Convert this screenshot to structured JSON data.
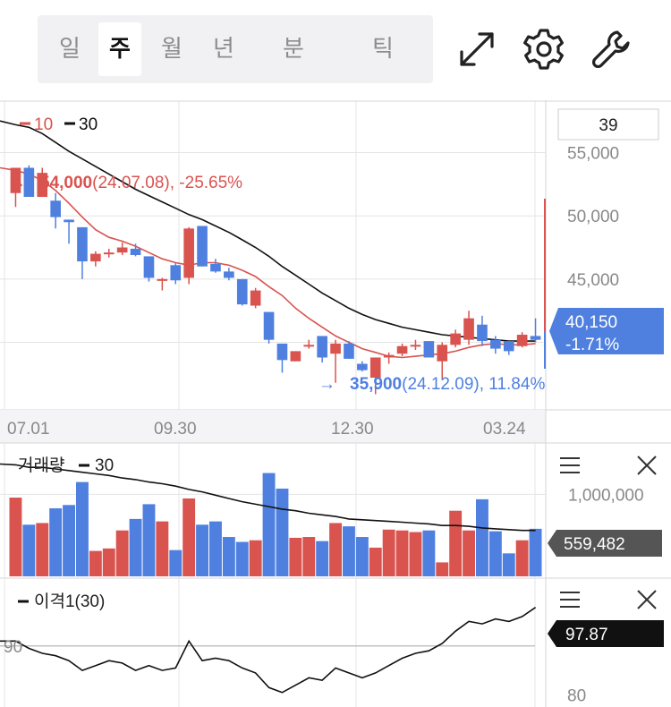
{
  "toolbar": {
    "periods": [
      "일",
      "주",
      "월",
      "년",
      "분",
      "틱"
    ],
    "active_period": "주",
    "icons": [
      "expand-icon",
      "gear-icon",
      "wrench-icon"
    ]
  },
  "colors": {
    "up": "#d9534f",
    "down": "#4f80e0",
    "ma10": "#d9534f",
    "ma30": "#111111",
    "grid": "#e4e4e4",
    "axis_text": "#888888"
  },
  "chart_data": [
    {
      "type": "candlestick",
      "legend": [
        {
          "name": "10",
          "color": "#d9534f"
        },
        {
          "name": "30",
          "color": "#111111"
        }
      ],
      "period_input": "39",
      "x_labels": [
        "07.01",
        "09.30",
        "12.30",
        "03.24"
      ],
      "y_ticks": [
        55000,
        50000,
        45000
      ],
      "y_tick_labels": [
        "55,000",
        "50,000",
        "45,000"
      ],
      "ylim": [
        34800,
        59000
      ],
      "last_price": "40,150",
      "last_change": "-1.71%",
      "high_marker": {
        "arrow": "→",
        "price": "54,000",
        "date": "(24.07.08)",
        "pct": ", -25.65%"
      },
      "low_marker": {
        "arrow": "→",
        "price": "35,900",
        "date": "(24.12.09)",
        "pct": ", 11.84%"
      },
      "candles": [
        {
          "o": 51800,
          "h": 53800,
          "l": 50700,
          "c": 53800
        },
        {
          "o": 53800,
          "h": 54000,
          "l": 51500,
          "c": 51500
        },
        {
          "o": 51500,
          "h": 53800,
          "l": 51500,
          "c": 53400
        },
        {
          "o": 51200,
          "h": 51800,
          "l": 49000,
          "c": 49900
        },
        {
          "o": 49700,
          "h": 49700,
          "l": 47800,
          "c": 49500
        },
        {
          "o": 49100,
          "h": 49100,
          "l": 45000,
          "c": 46400
        },
        {
          "o": 46400,
          "h": 47200,
          "l": 46000,
          "c": 47000
        },
        {
          "o": 47000,
          "h": 47400,
          "l": 46700,
          "c": 47100
        },
        {
          "o": 47100,
          "h": 47900,
          "l": 46900,
          "c": 47500
        },
        {
          "o": 47400,
          "h": 47800,
          "l": 46800,
          "c": 46900
        },
        {
          "o": 46800,
          "h": 46800,
          "l": 44800,
          "c": 45100
        },
        {
          "o": 45000,
          "h": 45100,
          "l": 44100,
          "c": 45000
        },
        {
          "o": 46100,
          "h": 46300,
          "l": 44600,
          "c": 44900
        },
        {
          "o": 45100,
          "h": 49100,
          "l": 44600,
          "c": 49000
        },
        {
          "o": 49200,
          "h": 49200,
          "l": 46000,
          "c": 46000
        },
        {
          "o": 46200,
          "h": 46600,
          "l": 45500,
          "c": 45600
        },
        {
          "o": 45600,
          "h": 45900,
          "l": 44900,
          "c": 45100
        },
        {
          "o": 45000,
          "h": 45000,
          "l": 42900,
          "c": 43000
        },
        {
          "o": 42900,
          "h": 44300,
          "l": 42700,
          "c": 44100
        },
        {
          "o": 42400,
          "h": 42400,
          "l": 39900,
          "c": 40200
        },
        {
          "o": 39900,
          "h": 39900,
          "l": 37600,
          "c": 38600
        },
        {
          "o": 38500,
          "h": 39300,
          "l": 38500,
          "c": 39300
        },
        {
          "o": 39700,
          "h": 40200,
          "l": 39500,
          "c": 39800
        },
        {
          "o": 40500,
          "h": 40500,
          "l": 38400,
          "c": 38800
        },
        {
          "o": 39100,
          "h": 40200,
          "l": 36800,
          "c": 39900
        },
        {
          "o": 39900,
          "h": 40100,
          "l": 38700,
          "c": 38700
        },
        {
          "o": 38300,
          "h": 38500,
          "l": 37700,
          "c": 37800
        },
        {
          "o": 37200,
          "h": 38800,
          "l": 35900,
          "c": 38800
        },
        {
          "o": 38800,
          "h": 39200,
          "l": 38300,
          "c": 39000
        },
        {
          "o": 39100,
          "h": 39900,
          "l": 38900,
          "c": 39700
        },
        {
          "o": 39700,
          "h": 40200,
          "l": 39400,
          "c": 39800
        },
        {
          "o": 40100,
          "h": 40100,
          "l": 38800,
          "c": 38800
        },
        {
          "o": 38500,
          "h": 40000,
          "l": 37100,
          "c": 39800
        },
        {
          "o": 39800,
          "h": 41000,
          "l": 39600,
          "c": 40700
        },
        {
          "o": 40200,
          "h": 42500,
          "l": 39800,
          "c": 41900
        },
        {
          "o": 41400,
          "h": 42100,
          "l": 39700,
          "c": 40100
        },
        {
          "o": 40200,
          "h": 40500,
          "l": 39100,
          "c": 39500
        },
        {
          "o": 40100,
          "h": 40100,
          "l": 39000,
          "c": 39300
        },
        {
          "o": 39700,
          "h": 40800,
          "l": 39600,
          "c": 40600
        },
        {
          "o": 40500,
          "h": 41900,
          "l": 40000,
          "c": 40200
        }
      ],
      "ma10": [
        53600,
        53300,
        52800,
        52000,
        51000,
        49900,
        48900,
        48300,
        48000,
        47600,
        47100,
        46600,
        46300,
        46100,
        46300,
        46300,
        46100,
        45700,
        45200,
        44400,
        43700,
        42700,
        41900,
        41200,
        40500,
        40000,
        39500,
        39200,
        38900,
        38800,
        38900,
        39000,
        39100,
        39300,
        39600,
        39800,
        39900,
        39800,
        39800,
        39900
      ],
      "ma30": [
        57200,
        57000,
        56500,
        55800,
        55100,
        54500,
        53900,
        53300,
        52700,
        52100,
        51600,
        51100,
        50600,
        50100,
        49700,
        49200,
        48700,
        48100,
        47500,
        46800,
        46000,
        45300,
        44600,
        43900,
        43300,
        42700,
        42200,
        41800,
        41500,
        41200,
        41000,
        40800,
        40600,
        40500,
        40400,
        40300,
        40200,
        40100,
        40100,
        40100
      ]
    },
    {
      "type": "bar",
      "title": "거래량",
      "legend": [
        {
          "name": "30",
          "color": "#111111"
        }
      ],
      "y_tick_labels": [
        "1,000,000"
      ],
      "y_ticks": [
        1000000
      ],
      "ylim": [
        0,
        1550000
      ],
      "last_value": "559,482",
      "values": [
        960000,
        630000,
        650000,
        830000,
        870000,
        1150000,
        310000,
        340000,
        560000,
        700000,
        880000,
        670000,
        320000,
        950000,
        630000,
        670000,
        480000,
        420000,
        440000,
        1260000,
        1070000,
        470000,
        480000,
        430000,
        650000,
        610000,
        480000,
        350000,
        570000,
        560000,
        540000,
        560000,
        170000,
        800000,
        560000,
        940000,
        550000,
        280000,
        440000,
        580000
      ],
      "ma30": [
        1360000,
        1330000,
        1330000,
        1310000,
        1290000,
        1270000,
        1250000,
        1230000,
        1200000,
        1180000,
        1150000,
        1130000,
        1100000,
        1060000,
        1030000,
        990000,
        950000,
        910000,
        880000,
        850000,
        820000,
        800000,
        770000,
        750000,
        730000,
        700000,
        690000,
        680000,
        670000,
        660000,
        650000,
        640000,
        620000,
        620000,
        610000,
        590000,
        580000,
        570000,
        560000,
        560000
      ]
    },
    {
      "type": "line",
      "legend": [
        {
          "name": "이격1(30)",
          "color": "#111111"
        }
      ],
      "y_ticks": [
        90,
        80
      ],
      "y_tick_labels": [
        "90",
        "80"
      ],
      "ylim": [
        79,
        100
      ],
      "last_value": "97.87",
      "values": [
        91.0,
        89.5,
        88.5,
        88.0,
        87.0,
        85.0,
        86.0,
        87.0,
        86.5,
        85.0,
        86.0,
        85.0,
        85.5,
        91.0,
        87.0,
        87.5,
        87.0,
        85.5,
        84.5,
        81.5,
        80.5,
        82.0,
        83.5,
        83.0,
        85.5,
        84.5,
        83.5,
        84.5,
        86.0,
        87.5,
        88.5,
        89.0,
        90.5,
        93.0,
        95.0,
        94.5,
        95.5,
        95.0,
        96.0,
        97.87
      ]
    }
  ]
}
